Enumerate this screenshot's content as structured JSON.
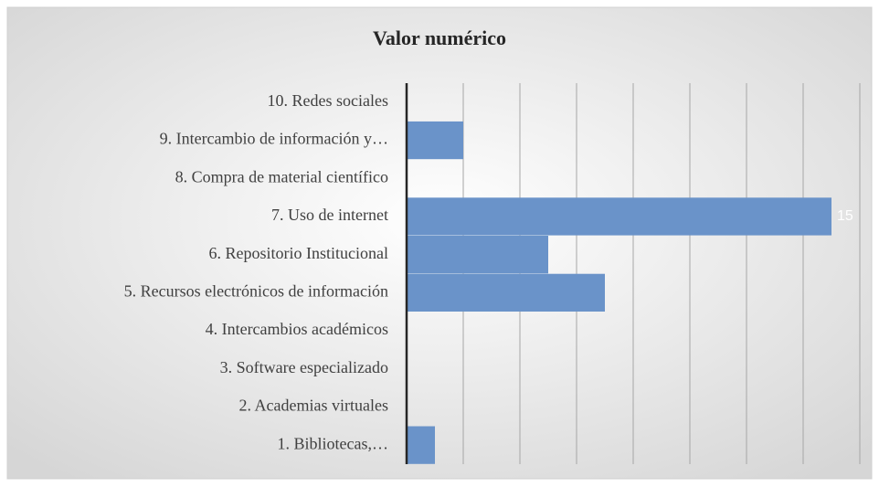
{
  "chart_data": {
    "type": "bar",
    "orientation": "horizontal",
    "title": "Valor numérico",
    "categories": [
      "10. Redes sociales",
      "9. Intercambio de información y…",
      "8. Compra de material  científico",
      "7. Uso de internet",
      "6. Repositorio Institucional",
      "5. Recursos electrónicos de información",
      "4. Intercambios académicos",
      "3. Software especializado",
      "2. Academias virtuales",
      "1. Bibliotecas,…"
    ],
    "values": [
      0,
      2,
      0,
      15,
      5,
      7,
      0,
      0,
      0,
      1
    ],
    "color": "#6a93c9",
    "xlim": [
      0,
      16
    ],
    "xticks": [
      0,
      2,
      4,
      6,
      8,
      10,
      12,
      14,
      16
    ],
    "grid": true
  }
}
